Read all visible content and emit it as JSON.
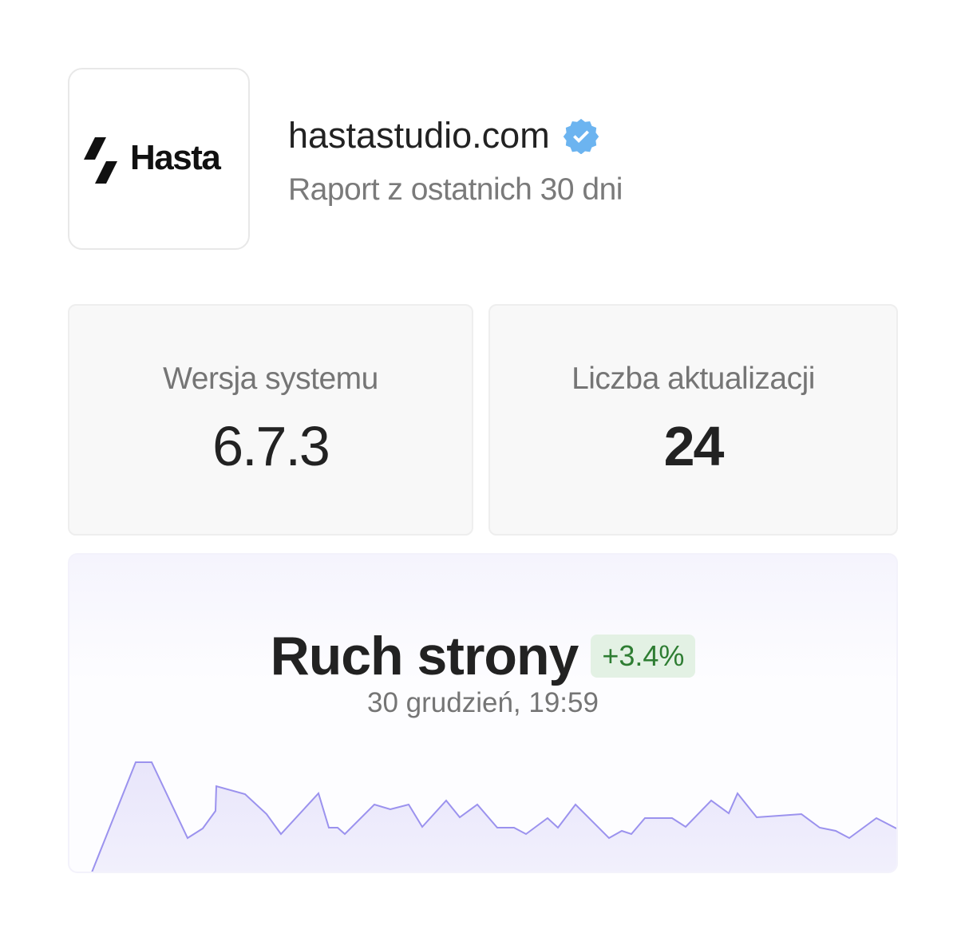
{
  "brand": {
    "logo_text": "Hasta"
  },
  "header": {
    "site": "hastastudio.com",
    "verified_icon": "verified-badge-icon",
    "subtitle": "Raport z ostatnich 30 dni"
  },
  "stats": [
    {
      "label": "Wersja systemu",
      "value": "6.7.3"
    },
    {
      "label": "Liczba aktualizacji",
      "value": "24"
    }
  ],
  "traffic": {
    "title": "Ruch strony",
    "change": "+3.4%",
    "timestamp": "30 grudzień, 19:59",
    "colors": {
      "line": "#9b92ee",
      "fill": "#e6e3fa",
      "badge_text": "#2e7d32",
      "badge_bg": "#e3f1e4"
    }
  },
  "chart_data": {
    "type": "area",
    "values": [
      0,
      138,
      138,
      43,
      55,
      77,
      108,
      98,
      73,
      48,
      99,
      56,
      56,
      48,
      85,
      79,
      85,
      57,
      90,
      69,
      85,
      56,
      56,
      48,
      68,
      56,
      85,
      43,
      52,
      48,
      68,
      68,
      57,
      90,
      74,
      99,
      69,
      73,
      56,
      52,
      43,
      68,
      55
    ]
  }
}
